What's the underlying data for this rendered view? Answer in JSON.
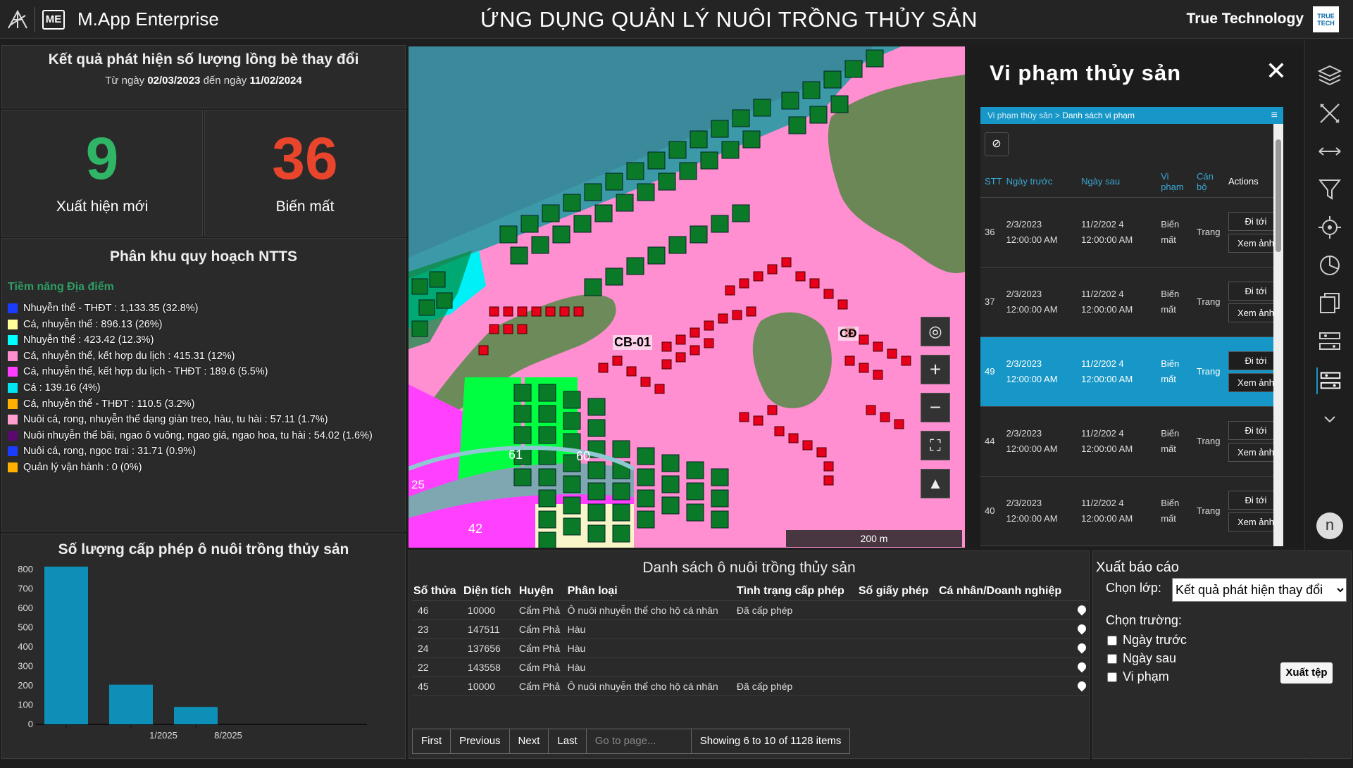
{
  "header": {
    "app_name": "M.App Enterprise",
    "logo_text": "ME",
    "title": "ỨNG DỤNG QUẢN LÝ NUÔI TRỒNG THỦY SẢN",
    "company": "True Technology",
    "company_logo_text": "TRUE TECH"
  },
  "change_panel": {
    "title": "Kết quả phát hiện số lượng lồng bè thay đổi",
    "from_label": "Từ ngày",
    "from_date": "02/03/2023",
    "to_label": "đến ngày",
    "to_date": "11/02/2024"
  },
  "new_count": {
    "value": "9",
    "label": "Xuất hiện mới",
    "color": "#2fb565"
  },
  "lost_count": {
    "value": "36",
    "label": "Biến mất",
    "color": "#e8452c"
  },
  "zoning": {
    "title": "Phân khu quy hoạch NTTS",
    "legend_header": "Tiềm năng Địa điểm",
    "items": [
      {
        "label": "Nhuyễn thể - THĐT : 1,133.35 (32.8%)",
        "value": 1133.35,
        "color": "#1a3cff"
      },
      {
        "label": "Cá, nhuyễn thể : 896.13 (26%)",
        "value": 896.13,
        "color": "#ffff99"
      },
      {
        "label": "Nhuyễn thể : 423.42 (12.3%)",
        "value": 423.42,
        "color": "#00ffff"
      },
      {
        "label": "Cá, nhuyễn thể, kết hợp du lịch : 415.31 (12%)",
        "value": 415.31,
        "color": "#ff8fcf"
      },
      {
        "label": "Cá, nhuyễn thể, kết hợp du lịch - THĐT : 189.6 (5.5%)",
        "value": 189.6,
        "color": "#ff3cff"
      },
      {
        "label": "Cá : 139.16 (4%)",
        "value": 139.16,
        "color": "#00e6f0"
      },
      {
        "label": "Cá, nhuyễn thể - THĐT : 110.5 (3.2%)",
        "value": 110.5,
        "color": "#ffb000"
      },
      {
        "label": "Nuôi cá, rong, nhuyễn thể dạng giàn treo, hàu, tu hài : 57.11 (1.7%)",
        "value": 57.11,
        "color": "#ff9fd0"
      },
      {
        "label": "Nuôi nhuyễn thể bãi, ngao ô vuông, ngao giá, ngao hoa, tu hài : 54.02 (1.6%)",
        "value": 54.02,
        "color": "#5a0a6e"
      },
      {
        "label": "Nuôi cá, rong, ngọc trai : 31.71 (0.9%)",
        "value": 31.71,
        "color": "#1a3cff"
      },
      {
        "label": "Quản lý vận hành : 0 (0%)",
        "value": 0,
        "color": "#ffb000"
      }
    ]
  },
  "chart_data": {
    "type": "bar",
    "title": "Số lượng cấp phép ô nuôi trồng thủy sản",
    "categories": [
      "",
      "1/2025",
      "8/2025"
    ],
    "values": [
      815,
      205,
      90
    ],
    "ylim": [
      0,
      800
    ],
    "yticks": [
      0,
      100,
      200,
      300,
      400,
      500,
      600,
      700,
      800
    ],
    "color": "#0e8fb8"
  },
  "map": {
    "labels": [
      "CB-01",
      "CĐ",
      "61",
      "60",
      "42",
      "25"
    ],
    "scale": "200 m"
  },
  "violation": {
    "title": "Vi phạm thủy sản",
    "close": "✕",
    "crumb_root": "Vi phạm thủy sản",
    "crumb_sep": ">",
    "crumb_current": "Danh sách vi phạm",
    "columns": [
      "STT",
      "Ngày trước",
      "Ngày sau",
      "Vi phạm",
      "Cán bộ",
      "Actions"
    ],
    "rows": [
      {
        "stt": "36",
        "before": "2/3/2023 12:00:00 AM",
        "after": "11/2/202 4 12:00:00 AM",
        "type": "Biến mất",
        "officer": "Trang"
      },
      {
        "stt": "37",
        "before": "2/3/2023 12:00:00 AM",
        "after": "11/2/202 4 12:00:00 AM",
        "type": "Biến mất",
        "officer": "Trang"
      },
      {
        "stt": "49",
        "before": "2/3/2023 12:00:00 AM",
        "after": "11/2/202 4 12:00:00 AM",
        "type": "Biến mất",
        "officer": "Trang"
      },
      {
        "stt": "44",
        "before": "2/3/2023 12:00:00 AM",
        "after": "11/2/202 4 12:00:00 AM",
        "type": "Biến mất",
        "officer": "Trang"
      },
      {
        "stt": "40",
        "before": "2/3/2023 12:00:00 AM",
        "after": "11/2/202 4 12:00:00 AM",
        "type": "Biến mất",
        "officer": "Trang"
      }
    ],
    "goto_label": "Đi tới",
    "view_label": "Xem ảnh"
  },
  "list": {
    "title": "Danh sách ô nuôi trồng thủy sản",
    "columns": [
      "Số thửa",
      "Diện tích",
      "Huyện",
      "Phân loại",
      "Tình trạng cấp phép",
      "Số giấy phép",
      "Cá nhân/Doanh nghiệp"
    ],
    "rows": [
      {
        "parcel": "46",
        "area": "10000",
        "district": "Cẩm Phả",
        "type": "Ô nuôi nhuyễn thể cho hộ cá nhân",
        "status": "Đã cấp phép"
      },
      {
        "parcel": "23",
        "area": "147511",
        "district": "Cẩm Phả",
        "type": "Hàu",
        "status": ""
      },
      {
        "parcel": "24",
        "area": "137656",
        "district": "Cẩm Phả",
        "type": "Hàu",
        "status": ""
      },
      {
        "parcel": "22",
        "area": "143558",
        "district": "Cẩm Phả",
        "type": "Hàu",
        "status": ""
      },
      {
        "parcel": "45",
        "area": "10000",
        "district": "Cẩm Phả",
        "type": "Ô nuôi nhuyễn thể cho hộ cá nhân",
        "status": "Đã cấp phép"
      }
    ],
    "pager": {
      "first": "First",
      "previous": "Previous",
      "next": "Next",
      "last": "Last",
      "goto_placeholder": "Go to page...",
      "status": "Showing 6 to 10 of 1128 items"
    }
  },
  "export": {
    "title": "Xuất báo cáo",
    "layer_label": "Chọn lớp:",
    "layer_value": "Kết quả phát hiện thay đổi",
    "field_label": "Chọn trường:",
    "fields": [
      "Ngày trước",
      "Ngày sau",
      "Vi phạm"
    ],
    "button": "Xuất tệp"
  },
  "user": {
    "avatar": "n"
  }
}
